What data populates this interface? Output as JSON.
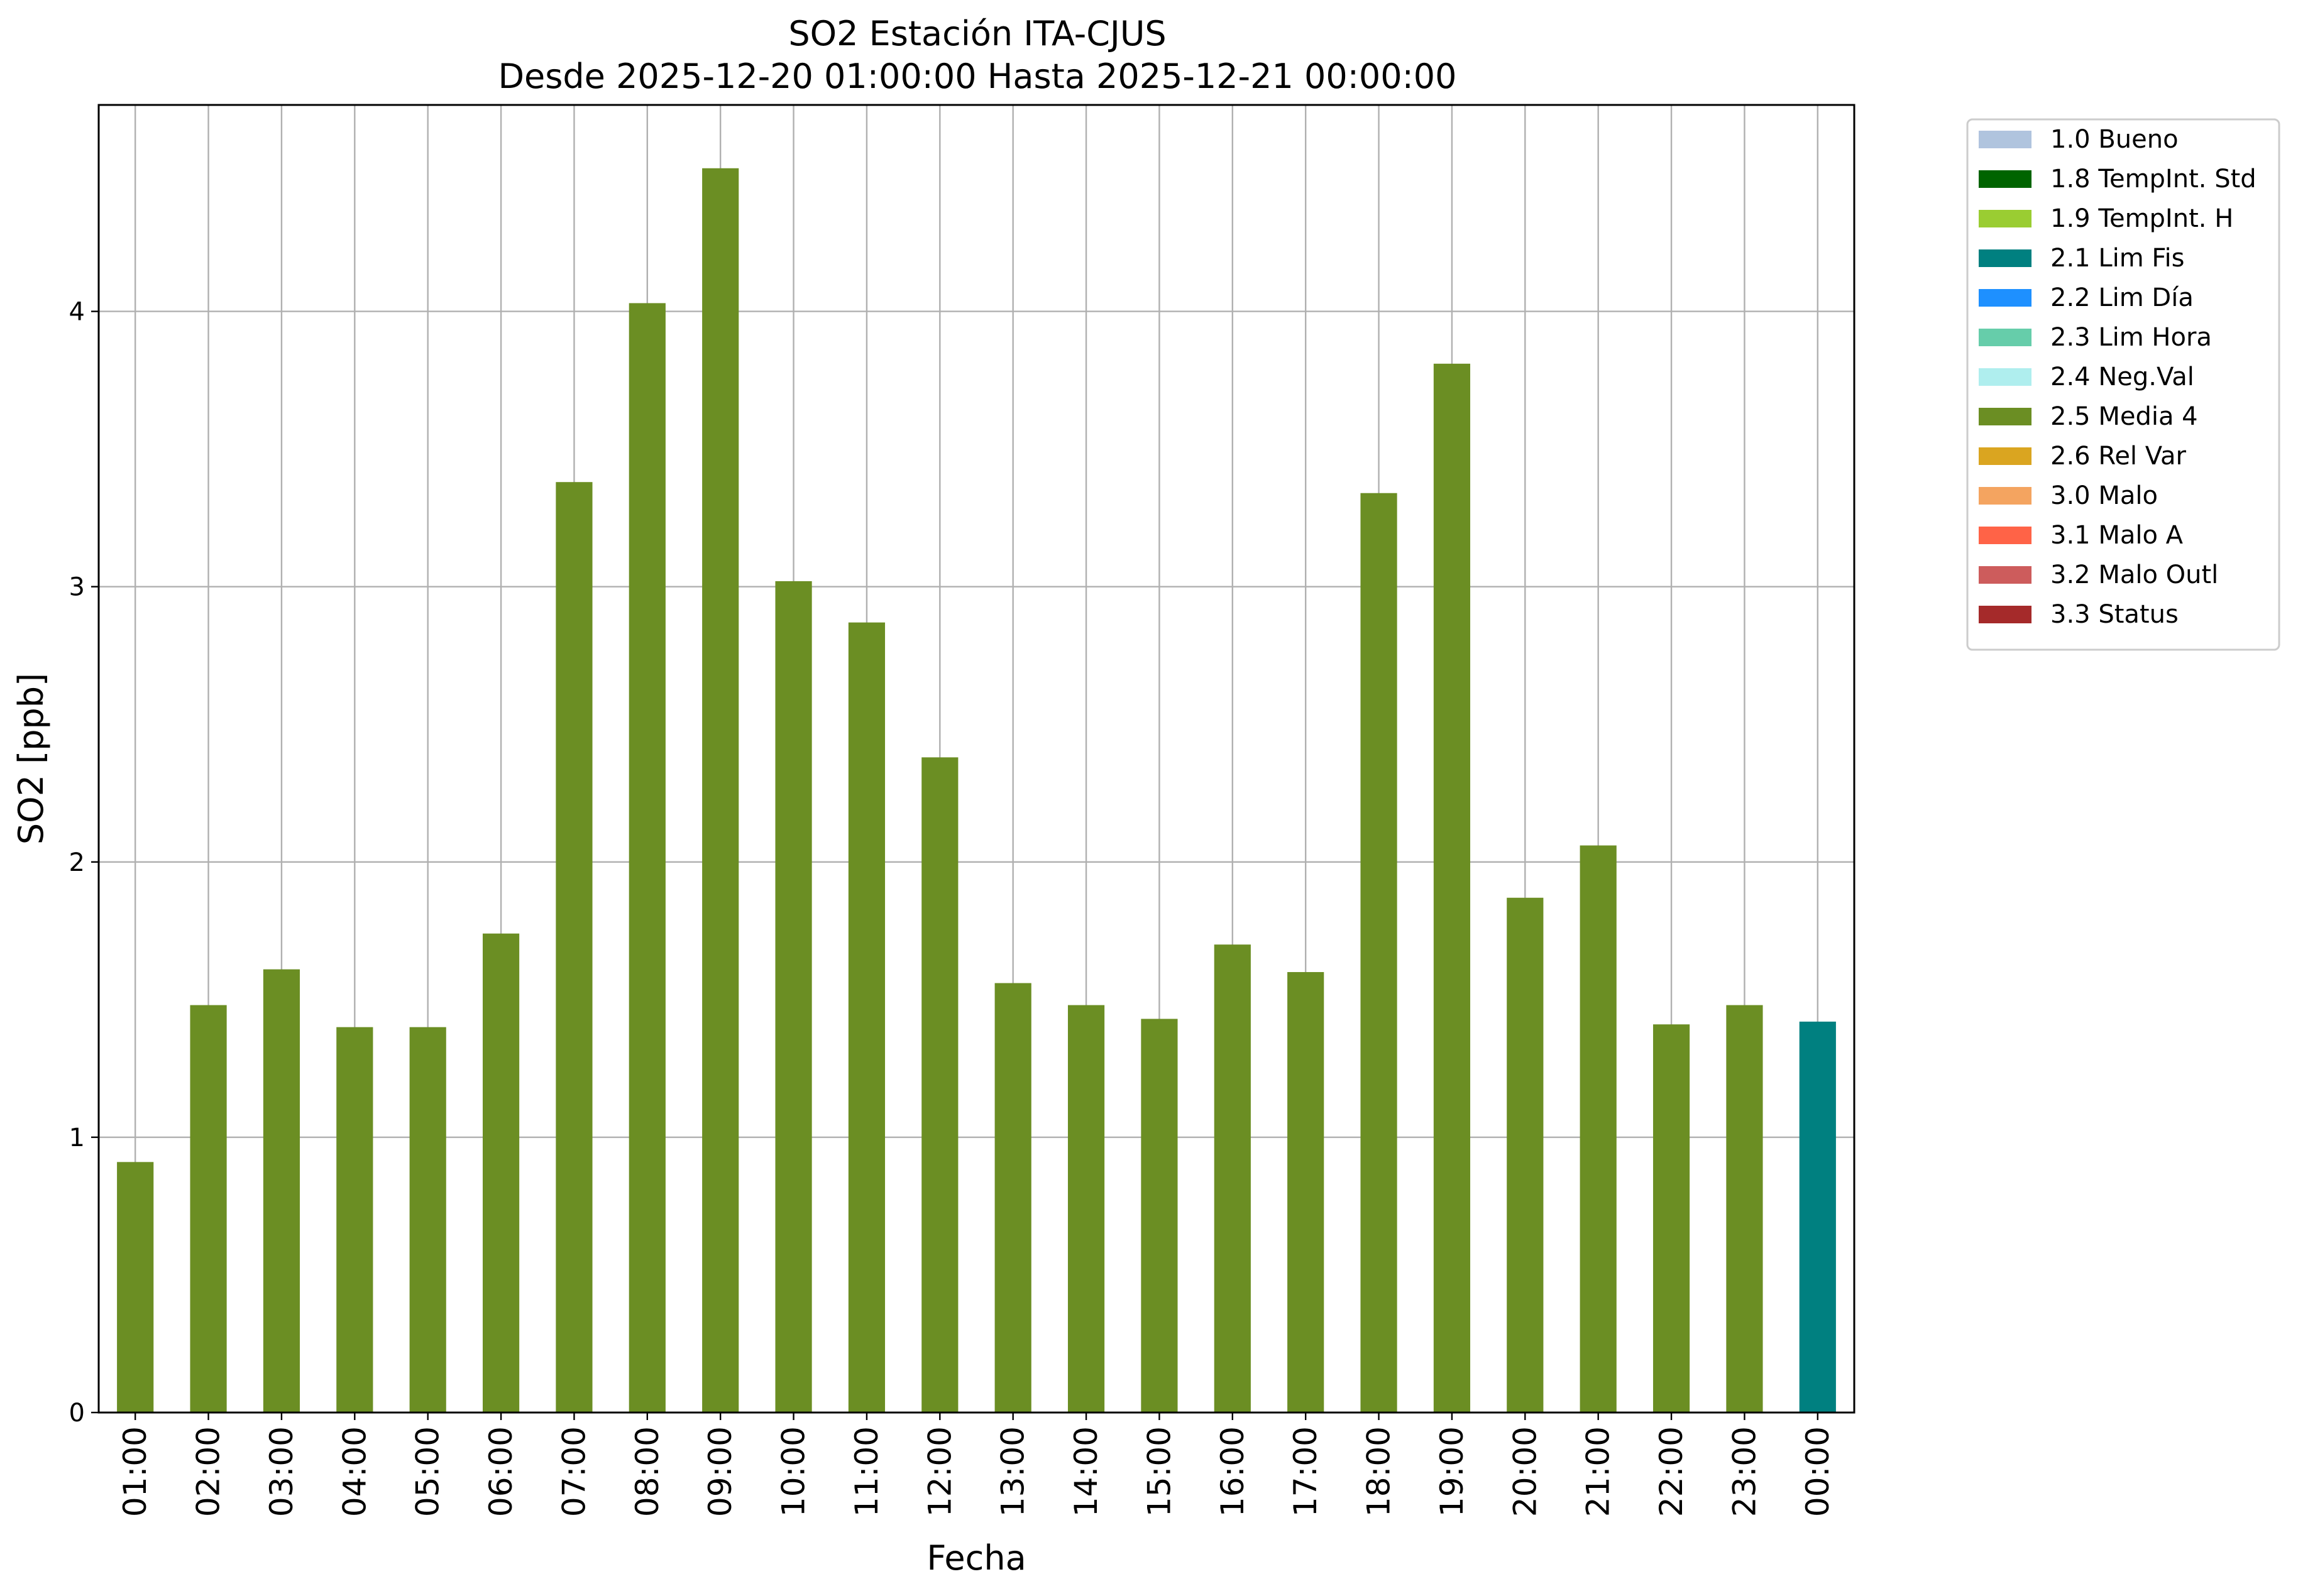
{
  "chart_data": {
    "type": "bar",
    "title": "SO2 Estación ITA-CJUS",
    "subtitle": "Desde 2025-12-20 01:00:00 Hasta 2025-12-21 00:00:00",
    "xlabel": "Fecha",
    "ylabel": "SO2 [ppb]",
    "ylim": [
      0,
      4.75
    ],
    "yticks": [
      0,
      1,
      2,
      3,
      4
    ],
    "grid": true,
    "legend_position": "outside-top-right",
    "categories": [
      "01:00",
      "02:00",
      "03:00",
      "04:00",
      "05:00",
      "06:00",
      "07:00",
      "08:00",
      "09:00",
      "10:00",
      "11:00",
      "12:00",
      "13:00",
      "14:00",
      "15:00",
      "16:00",
      "17:00",
      "18:00",
      "19:00",
      "20:00",
      "21:00",
      "22:00",
      "23:00",
      "00:00"
    ],
    "values": [
      0.91,
      1.48,
      1.61,
      1.4,
      1.4,
      1.74,
      3.38,
      4.03,
      4.52,
      3.02,
      2.87,
      2.38,
      1.56,
      1.48,
      1.43,
      1.7,
      1.6,
      3.34,
      3.81,
      1.87,
      2.06,
      1.41,
      1.48,
      1.42
    ],
    "flags": [
      "2.5 Media 4",
      "2.5 Media 4",
      "2.5 Media 4",
      "2.5 Media 4",
      "2.5 Media 4",
      "2.5 Media 4",
      "2.5 Media 4",
      "2.5 Media 4",
      "2.5 Media 4",
      "2.5 Media 4",
      "2.5 Media 4",
      "2.5 Media 4",
      "2.5 Media 4",
      "2.5 Media 4",
      "2.5 Media 4",
      "2.5 Media 4",
      "2.5 Media 4",
      "2.5 Media 4",
      "2.5 Media 4",
      "2.5 Media 4",
      "2.5 Media 4",
      "2.5 Media 4",
      "2.5 Media 4",
      "2.1 Lim Fis"
    ],
    "legend": [
      {
        "label": "1.0 Bueno",
        "color": "#b0c4de"
      },
      {
        "label": "1.8 TempInt. Std",
        "color": "#006400"
      },
      {
        "label": "1.9 TempInt. H",
        "color": "#9acd32"
      },
      {
        "label": "2.1 Lim Fis",
        "color": "#008080"
      },
      {
        "label": "2.2 Lim Día",
        "color": "#1e90ff"
      },
      {
        "label": "2.3 Lim Hora",
        "color": "#66cdaa"
      },
      {
        "label": "2.4 Neg.Val",
        "color": "#afeeee"
      },
      {
        "label": "2.5 Media 4",
        "color": "#6b8e23"
      },
      {
        "label": "2.6 Rel Var",
        "color": "#daa520"
      },
      {
        "label": "3.0 Malo",
        "color": "#f4a460"
      },
      {
        "label": "3.1 Malo A",
        "color": "#ff6347"
      },
      {
        "label": "3.2 Malo Outl",
        "color": "#cd5c5c"
      },
      {
        "label": "3.3 Status",
        "color": "#a52a2a"
      }
    ]
  }
}
